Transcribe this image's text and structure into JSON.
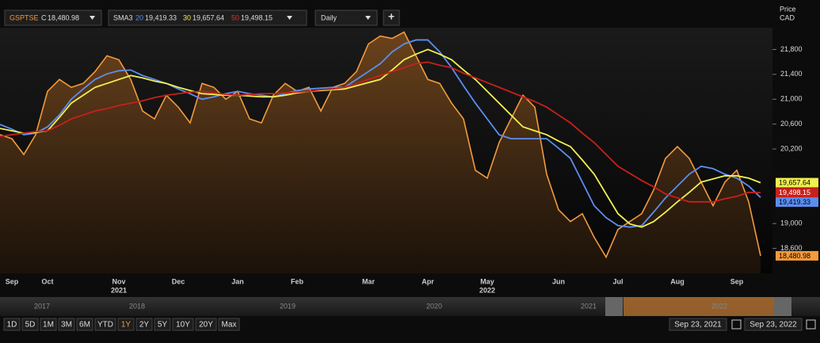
{
  "chart_data": {
    "type": "line",
    "area_series": 0,
    "categories": [
      null,
      "Sep",
      null,
      null,
      "Oct",
      null,
      null,
      null,
      null,
      null,
      "Nov",
      null,
      null,
      null,
      null,
      "Dec",
      null,
      null,
      null,
      null,
      "Jan",
      null,
      null,
      null,
      null,
      "Feb",
      null,
      null,
      null,
      null,
      null,
      "Mar",
      null,
      null,
      null,
      null,
      "Apr",
      null,
      null,
      null,
      null,
      "May",
      null,
      null,
      null,
      null,
      null,
      "Jun",
      null,
      null,
      null,
      null,
      "Jul",
      null,
      null,
      null,
      null,
      "Aug",
      null,
      null,
      null,
      null,
      "Sep",
      null,
      null
    ],
    "year_labels": [
      "2021",
      "2022"
    ],
    "series": [
      {
        "name": "GSPTSE",
        "color": "#f39a3c",
        "last_label": "18,480.98",
        "values": [
          20429,
          20365,
          20111,
          20429,
          21127,
          21318,
          21191,
          21254,
          21445,
          21699,
          21635,
          21318,
          20810,
          20683,
          21064,
          20873,
          20619,
          21254,
          21191,
          21000,
          21127,
          20683,
          20619,
          21064,
          21254,
          21127,
          21191,
          20810,
          21191,
          21254,
          21445,
          21889,
          22016,
          21978,
          22080,
          21699,
          21318,
          21254,
          20937,
          20683,
          19857,
          19730,
          20302,
          20683,
          21064,
          20873,
          19794,
          19222,
          19032,
          19159,
          18778,
          18460,
          18905,
          19032,
          19159,
          19540,
          20048,
          20238,
          20048,
          19667,
          19286,
          19667,
          19857,
          19349,
          18480.98
        ]
      },
      {
        "name": "20",
        "color": "#5b8ef0",
        "last_label": "19,419.33",
        "values": [
          20594,
          20518,
          20429,
          20454,
          20556,
          20746,
          21000,
          21165,
          21318,
          21407,
          21458,
          21470,
          21381,
          21318,
          21254,
          21165,
          21089,
          21000,
          21038,
          21089,
          21127,
          21089,
          21064,
          21038,
          21089,
          21140,
          21165,
          21178,
          21191,
          21191,
          21318,
          21445,
          21572,
          21762,
          21889,
          21953,
          21953,
          21762,
          21508,
          21216,
          20937,
          20683,
          20429,
          20365,
          20365,
          20365,
          20365,
          20213,
          20048,
          19667,
          19286,
          19095,
          18968,
          18943,
          18968,
          19184,
          19413,
          19603,
          19794,
          19921,
          19883,
          19794,
          19730,
          19603,
          19419.33
        ]
      },
      {
        "name": "30",
        "color": "#f0f050",
        "last_label": "19,657.64",
        "values": [
          20530,
          20492,
          20454,
          20467,
          20492,
          20708,
          20937,
          21064,
          21191,
          21254,
          21318,
          21381,
          21343,
          21292,
          21254,
          21191,
          21140,
          21089,
          21077,
          21064,
          21064,
          21051,
          21038,
          21038,
          21064,
          21102,
          21127,
          21140,
          21153,
          21165,
          21216,
          21267,
          21318,
          21470,
          21635,
          21724,
          21800,
          21724,
          21635,
          21470,
          21318,
          21127,
          20937,
          20746,
          20556,
          20492,
          20429,
          20327,
          20238,
          20022,
          19794,
          19476,
          19159,
          18994,
          18943,
          19032,
          19184,
          19349,
          19502,
          19667,
          19718,
          19768,
          19768,
          19730,
          19657.64
        ]
      },
      {
        "name": "50",
        "color": "#c8201c",
        "last_label": "19,498.15",
        "values": [
          20403,
          20429,
          20454,
          20480,
          20492,
          20581,
          20683,
          20746,
          20810,
          20848,
          20899,
          20937,
          20975,
          21026,
          21064,
          21089,
          21115,
          21127,
          21102,
          21077,
          21064,
          21077,
          21089,
          21089,
          21102,
          21115,
          21127,
          21153,
          21165,
          21191,
          21254,
          21318,
          21381,
          21445,
          21508,
          21572,
          21597,
          21546,
          21508,
          21419,
          21343,
          21267,
          21191,
          21115,
          21038,
          20962,
          20873,
          20746,
          20619,
          20454,
          20302,
          20111,
          19921,
          19807,
          19692,
          19591,
          19476,
          19413,
          19349,
          19349,
          19349,
          19400,
          19438,
          19502,
          19498.15
        ]
      }
    ],
    "ylim": [
      18200,
      22150
    ],
    "yticks": [
      {
        "value": 18600,
        "label": "18,600"
      },
      {
        "value": 19000,
        "label": "19,000"
      },
      {
        "value": 20200,
        "label": "20,200"
      },
      {
        "value": 20600,
        "label": "20,600"
      },
      {
        "value": 21000,
        "label": "21,000"
      },
      {
        "value": 21400,
        "label": "21,400"
      },
      {
        "value": 21800,
        "label": "21,800"
      }
    ],
    "y_axis_title": "Price",
    "y_axis_unit": "CAD",
    "grid": false
  },
  "toolbar": {
    "prefix": "C",
    "study": "SMA3",
    "interval": "Daily",
    "add": "+"
  },
  "navigator": {
    "years": [
      "2017",
      "2018",
      "2019",
      "2020",
      "2021",
      "2022"
    ]
  },
  "ranges": {
    "buttons": [
      "1D",
      "5D",
      "1M",
      "3M",
      "6M",
      "YTD",
      "1Y",
      "2Y",
      "5Y",
      "10Y",
      "20Y",
      "Max"
    ],
    "active": "1Y",
    "from": "Sep 23, 2021",
    "to": "Sep 23, 2022"
  }
}
